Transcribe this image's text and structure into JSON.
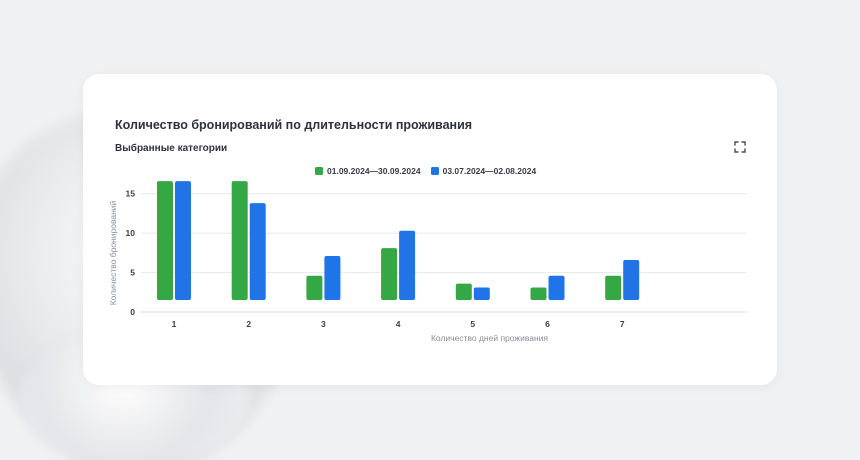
{
  "card": {
    "title": "Количество бронирований по длительности проживания",
    "subtitle": "Выбранные категории"
  },
  "icons": {
    "expand": "fullscreen-icon"
  },
  "colors": {
    "series1": "#33a845",
    "series2": "#1f74e8",
    "grid": "#e6e8ec",
    "axis": "#d5d8de"
  },
  "chart_data": {
    "type": "bar",
    "categories": [
      "1",
      "2",
      "3",
      "4",
      "5",
      "6",
      "7"
    ],
    "series": [
      {
        "name": "01.09.2024—30.09.2024",
        "values": [
          15,
          15,
          3,
          6.5,
          2,
          1.5,
          3
        ]
      },
      {
        "name": "03.07.2024—02.08.2024",
        "values": [
          15,
          12.2,
          5.5,
          8.7,
          1.5,
          3,
          5
        ]
      }
    ],
    "xlabel": "Количество дней проживания",
    "ylabel": "Количество бронирований",
    "ylim": [
      0,
      17.5
    ],
    "yticks": [
      0,
      5,
      10,
      15
    ],
    "grid": true,
    "legend": "top-center"
  }
}
